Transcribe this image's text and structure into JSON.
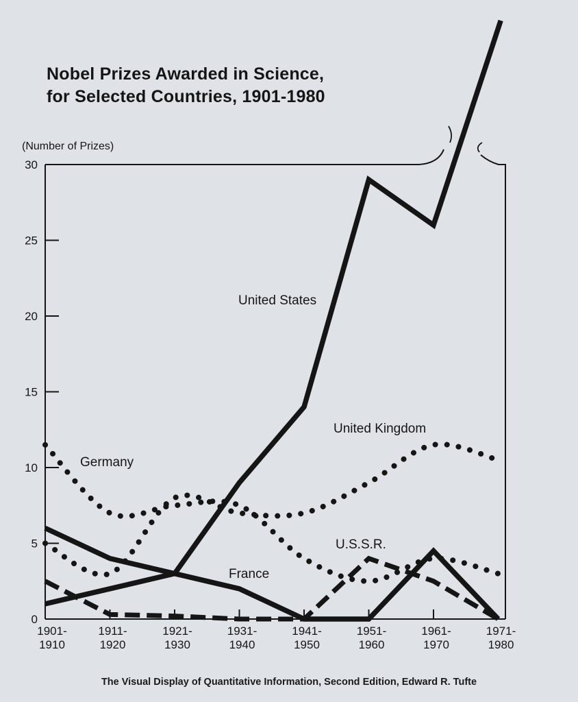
{
  "title": {
    "line1": "Nobel Prizes Awarded in Science,",
    "line2": "for Selected Countries, 1901-1980"
  },
  "caption": "The Visual Display of Quantitative Information, Second Edition, Edward R. Tufte",
  "chart_data": {
    "type": "line",
    "title": "Nobel Prizes Awarded in Science, for Selected Countries, 1901-1980",
    "ylabel": "(Number of Prizes)",
    "xlabel": "",
    "ylim": [
      0,
      30
    ],
    "yticks": [
      "0",
      "5",
      "10",
      "15",
      "20",
      "25",
      "30"
    ],
    "categories": [
      [
        "1901-",
        "1910"
      ],
      [
        "1911-",
        "1920"
      ],
      [
        "1921-",
        "1930"
      ],
      [
        "1931-",
        "1940"
      ],
      [
        "1941-",
        "1950"
      ],
      [
        "1951-",
        "1960"
      ],
      [
        "1961-",
        "1970"
      ],
      [
        "1971-",
        "1980"
      ]
    ],
    "series": [
      {
        "name": "United States",
        "style": "solid",
        "values": [
          1,
          2,
          3,
          9,
          14,
          29,
          26,
          39
        ]
      },
      {
        "name": "United Kingdom",
        "style": "dotted",
        "values": [
          5,
          3,
          8,
          7,
          7,
          9,
          11.5,
          10.5
        ]
      },
      {
        "name": "Germany",
        "style": "dotted",
        "values": [
          11.5,
          7,
          7.5,
          7.5,
          4,
          2.5,
          4,
          3
        ]
      },
      {
        "name": "France",
        "style": "solid",
        "values": [
          6,
          4,
          3,
          2,
          0,
          0,
          4.5,
          0
        ]
      },
      {
        "name": "U.S.S.R.",
        "style": "dashed",
        "values": [
          2.5,
          0.3,
          0.2,
          0,
          0,
          4,
          2.5,
          0
        ]
      }
    ],
    "series_labels": [
      "United States",
      "United Kingdom",
      "Germany",
      "France",
      "U.S.S.R."
    ],
    "ink_color": "#151515",
    "background_color": "#dfe3e8"
  }
}
